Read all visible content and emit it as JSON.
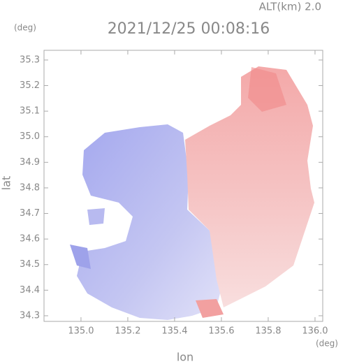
{
  "chart_data": {
    "type": "image",
    "title": "2021/12/25 00:08:16",
    "subtitle": "ALT(km) 2.0",
    "x_label": "lon",
    "y_label": "lat",
    "x_unit": "(deg)",
    "y_unit": "(deg)",
    "xlim": [
      134.842,
      136.033
    ],
    "ylim": [
      34.278,
      35.338
    ],
    "xticks": [
      {
        "value": 135,
        "label": "135.0"
      },
      135.2,
      135.4,
      135.6,
      135.8,
      {
        "value": 136,
        "label": "136.0"
      }
    ],
    "yticks": [
      34.3,
      34.4,
      34.5,
      34.6,
      34.7,
      34.8,
      34.9,
      {
        "value": 35,
        "label": "35.0"
      },
      35.1,
      35.2,
      35.3
    ]
  }
}
